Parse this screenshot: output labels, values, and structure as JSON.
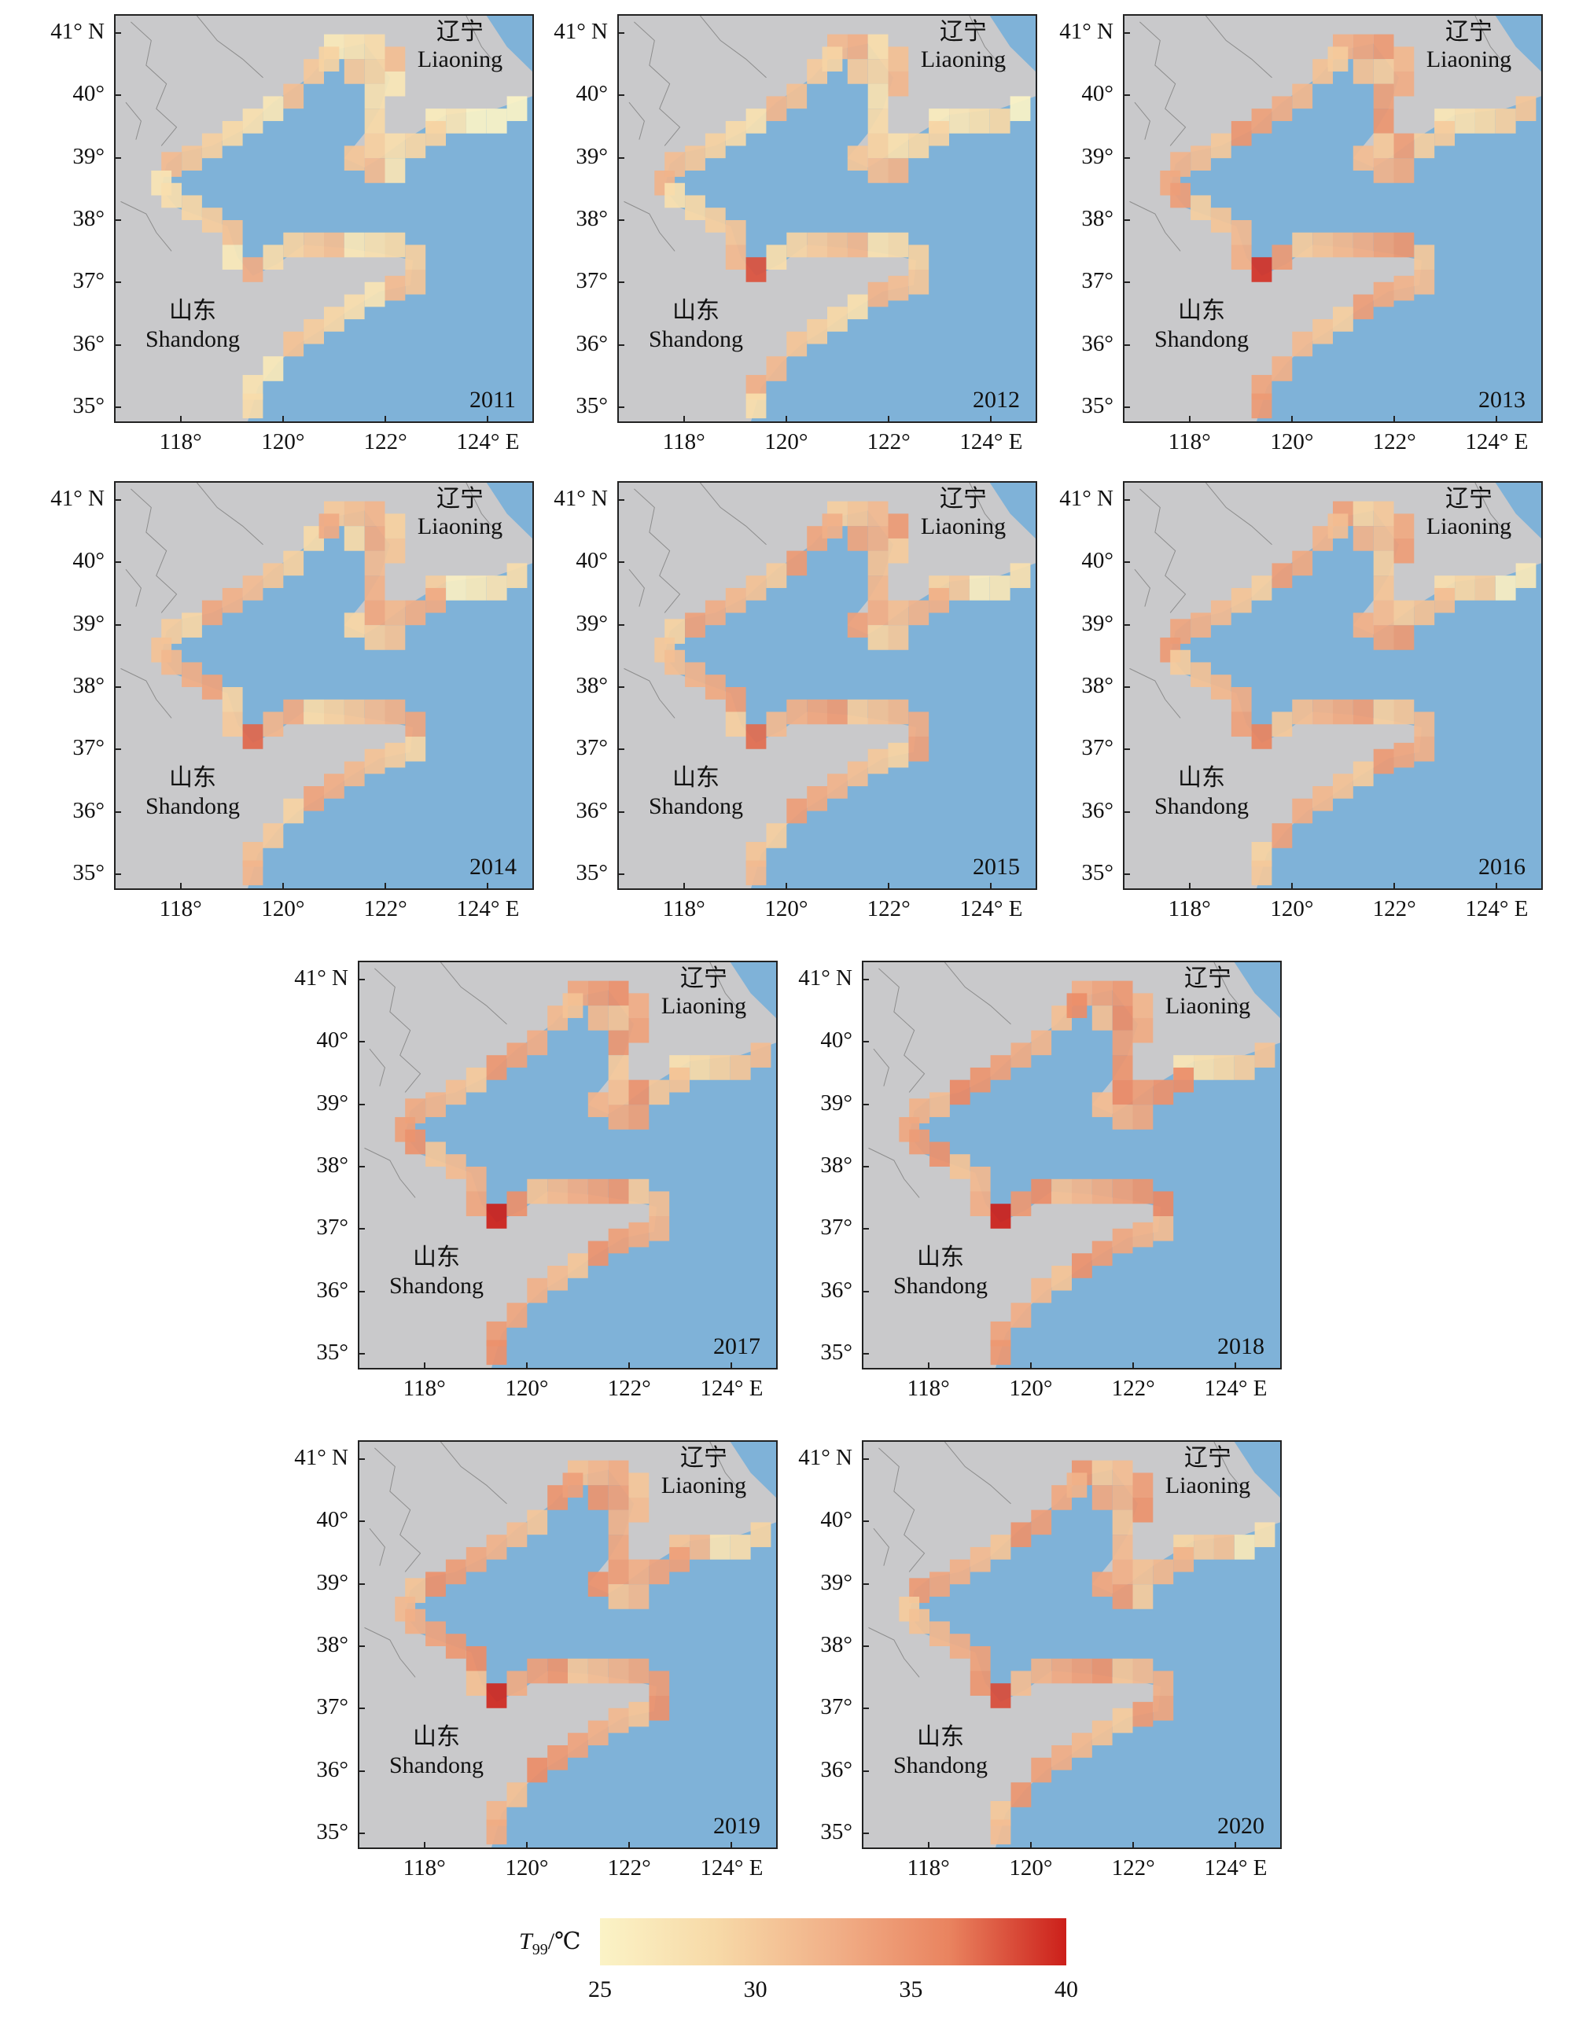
{
  "figure": {
    "panel_years": [
      "2011",
      "2012",
      "2013",
      "2014",
      "2015",
      "2016",
      "2017",
      "2018",
      "2019",
      "2020"
    ],
    "lat_tick_labels": [
      "41° N",
      "40°",
      "39°",
      "38°",
      "37°",
      "36°",
      "35°"
    ],
    "lon_tick_labels": [
      "118°",
      "120°",
      "122°",
      "124° E"
    ],
    "province_labels": {
      "liaoning_zh": "辽宁",
      "liaoning_en": "Liaoning",
      "shandong_zh": "山东",
      "shandong_en": "Shandong"
    }
  },
  "colorbar": {
    "label_prefix": "T",
    "label_subscript": "99",
    "label_unit": "/℃",
    "ticks": [
      "25",
      "30",
      "35",
      "40"
    ],
    "range": [
      25,
      40
    ],
    "colors": [
      "#fbf3c6",
      "#f7d9a7",
      "#f1b088",
      "#e9835f",
      "#cc1f1a"
    ]
  },
  "colors": {
    "sea": "#7fb2d8",
    "land": "#c9c9cb",
    "border": "#8c8c8c"
  }
}
